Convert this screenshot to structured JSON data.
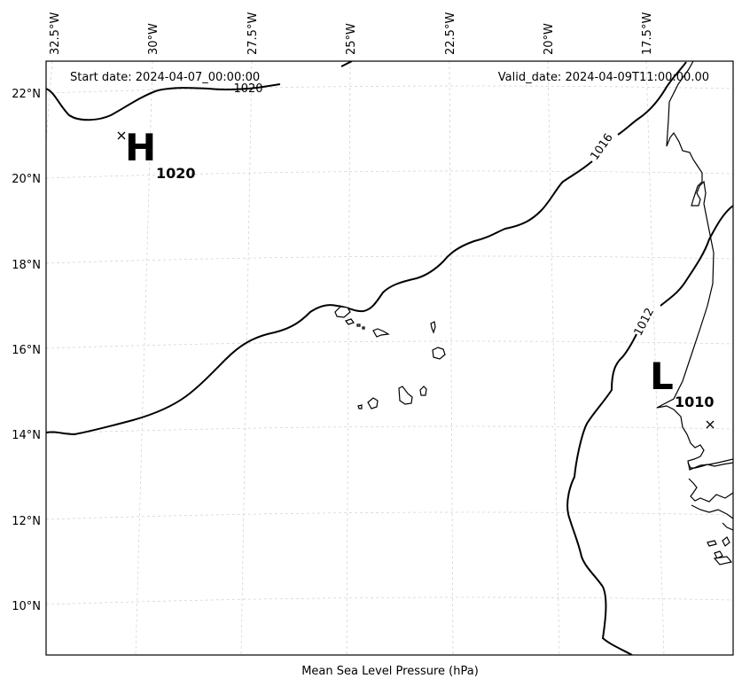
{
  "map": {
    "start_date": "Start date: 2024-04-07_00:00:00",
    "valid_date": "Valid_date: 2024-04-09T11:00:00.00",
    "caption": "Mean Sea Level Pressure (hPa)",
    "lon_ticks": [
      "32.5°W",
      "30°W",
      "27.5°W",
      "25°W",
      "22.5°W",
      "20°W",
      "17.5°W"
    ],
    "lat_ticks": [
      "22°N",
      "20°N",
      "18°N",
      "16°N",
      "14°N",
      "12°N",
      "10°N"
    ],
    "isobar_labels": [
      "1020",
      "1016",
      "1012"
    ],
    "high": {
      "symbol": "H",
      "value": "1020"
    },
    "low": {
      "symbol": "L",
      "value": "1010"
    }
  }
}
